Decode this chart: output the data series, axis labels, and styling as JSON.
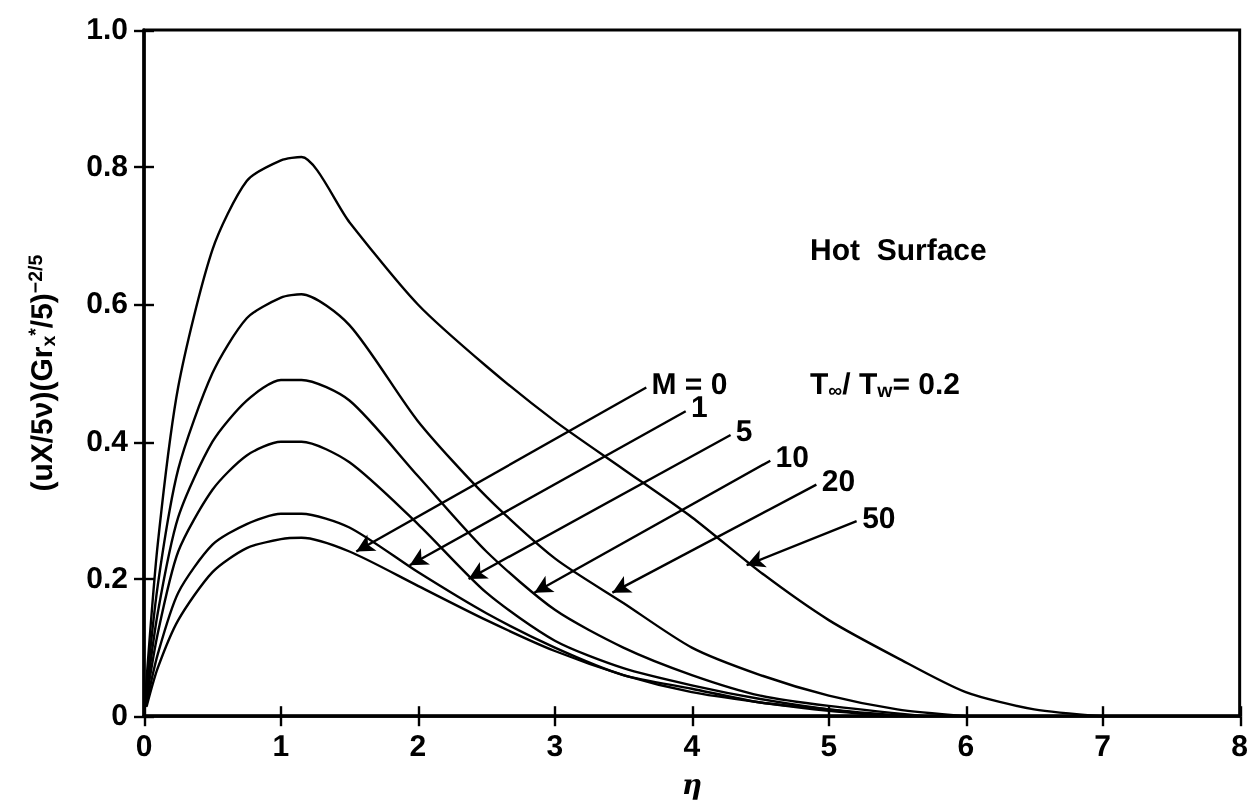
{
  "chart_data": {
    "type": "line",
    "xlabel": "η",
    "ylabel": "(uX/5ν)(Gr$_{x}$$^{*}$/5)$^{−2/5}$",
    "series": [
      {
        "color": "#000000",
        "x": [
          0.02,
          0.1,
          0.25,
          0.5,
          0.75,
          1,
          1.15,
          1.5,
          2,
          2.5,
          3,
          3.5,
          4,
          4.5,
          5,
          5.5
        ],
        "values": [
          0.015,
          0.07,
          0.14,
          0.21,
          0.245,
          0.258,
          0.26,
          0.24,
          0.19,
          0.14,
          0.095,
          0.06,
          0.035,
          0.02,
          0.008,
          0
        ]
      },
      {
        "color": "#000000",
        "x": [
          0.02,
          0.1,
          0.25,
          0.5,
          0.75,
          1,
          1.15,
          1.5,
          2,
          2.5,
          3,
          3.5,
          4,
          4.5,
          5,
          5.4
        ],
        "values": [
          0.02,
          0.09,
          0.18,
          0.25,
          0.28,
          0.295,
          0.295,
          0.275,
          0.21,
          0.15,
          0.1,
          0.06,
          0.04,
          0.02,
          0.01,
          0
        ]
      },
      {
        "color": "#000000",
        "x": [
          0.01,
          0.1,
          0.25,
          0.5,
          0.75,
          1,
          1.15,
          1.5,
          2,
          2.5,
          3,
          3.5,
          4,
          4.5,
          5,
          5.6
        ],
        "values": [
          0.015,
          0.12,
          0.24,
          0.33,
          0.38,
          0.4,
          0.4,
          0.37,
          0.28,
          0.18,
          0.11,
          0.07,
          0.045,
          0.025,
          0.01,
          0
        ]
      },
      {
        "color": "#000000",
        "x": [
          0.01,
          0.1,
          0.25,
          0.5,
          0.75,
          1,
          1.15,
          1.5,
          2,
          2.5,
          3,
          3.5,
          4,
          4.5,
          5,
          5.7
        ],
        "values": [
          0.02,
          0.15,
          0.29,
          0.4,
          0.46,
          0.49,
          0.49,
          0.46,
          0.35,
          0.24,
          0.155,
          0.1,
          0.06,
          0.03,
          0.015,
          0
        ]
      },
      {
        "color": "#000000",
        "x": [
          0.01,
          0.1,
          0.25,
          0.5,
          0.75,
          1,
          1.15,
          1.5,
          2,
          2.5,
          3,
          3.5,
          4,
          4.5,
          5,
          5.5,
          6
        ],
        "values": [
          0.025,
          0.19,
          0.36,
          0.5,
          0.58,
          0.61,
          0.615,
          0.57,
          0.43,
          0.32,
          0.23,
          0.165,
          0.1,
          0.06,
          0.03,
          0.01,
          0
        ]
      },
      {
        "color": "#000000",
        "x": [
          0.01,
          0.1,
          0.25,
          0.5,
          0.75,
          1,
          1.15,
          1.5,
          2,
          2.5,
          3,
          3.5,
          4,
          4.5,
          5,
          5.5,
          6,
          6.5,
          7
        ],
        "values": [
          0.03,
          0.25,
          0.48,
          0.68,
          0.78,
          0.81,
          0.815,
          0.72,
          0.6,
          0.51,
          0.43,
          0.36,
          0.29,
          0.21,
          0.14,
          0.085,
          0.035,
          0.01,
          0
        ]
      }
    ],
    "annotations": [
      {
        "text": "M = 0",
        "x": 1.55,
        "y": 0.24
      },
      {
        "text": "1",
        "x": 1.94,
        "y": 0.22
      },
      {
        "text": "5",
        "x": 2.37,
        "y": 0.2
      },
      {
        "text": "10",
        "x": 2.85,
        "y": 0.18
      },
      {
        "text": "20",
        "x": 3.42,
        "y": 0.18
      },
      {
        "text": "50",
        "x": 4.4,
        "y": 0.22
      },
      "Hot  Surface",
      "T$_{∞}$/ T$_{w}$= 0.2"
    ],
    "xlim": [
      0,
      8
    ],
    "xticks": [
      0,
      1,
      2,
      3,
      4,
      5,
      6,
      7,
      8
    ],
    "ylim": [
      0,
      1
    ],
    "yticks": [
      0,
      0.2,
      0.4,
      0.6,
      0.8,
      {
        "value": 1,
        "label": "1.0"
      }
    ],
    "grid": false,
    "marker": "none",
    "line_style": "solid"
  }
}
